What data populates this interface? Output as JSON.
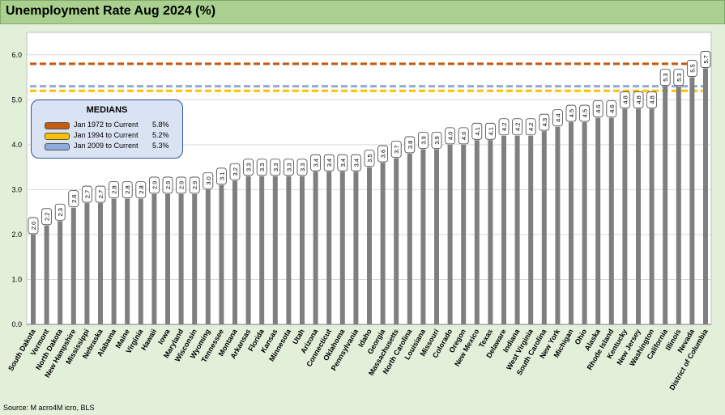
{
  "title": "Unemployment Rate Aug 2024 (%)",
  "source": "Source: M acro4M icro, BLS",
  "colors": {
    "bar": "#7f7f7f",
    "median_1972": "#c55a11",
    "median_1994": "#ffc000",
    "median_2009": "#8faadc"
  },
  "legend": {
    "title": "MEDIANS",
    "items": [
      {
        "label": "Jan 1972 to Current",
        "value": "5.8%",
        "color": "#c55a11"
      },
      {
        "label": "Jan 1994 to Current",
        "value": "5.2%",
        "color": "#ffc000"
      },
      {
        "label": "Jan 2009 to Current",
        "value": "5.3%",
        "color": "#8faadc"
      }
    ]
  },
  "chart_data": {
    "type": "bar",
    "title": "Unemployment Rate Aug 2024 (%)",
    "xlabel": "",
    "ylabel": "",
    "ylim": [
      0,
      6.5
    ],
    "yticks": [
      "0.0",
      "1.0",
      "2.0",
      "3.0",
      "4.0",
      "5.0",
      "6.0"
    ],
    "grid": true,
    "categories": [
      "South Dakota",
      "Vermont",
      "North Dakota",
      "New Hampshire",
      "Mississippi",
      "Nebraska",
      "Alabama",
      "Maine",
      "Virginia",
      "Hawaii",
      "Iowa",
      "Maryland",
      "Wisconsin",
      "Wyoming",
      "Tennessee",
      "Montana",
      "Arkansas",
      "Florida",
      "Kansas",
      "Minnesota",
      "Utah",
      "Arizona",
      "Connecticut",
      "Oklahoma",
      "Pennsylvania",
      "Idaho",
      "Georgia",
      "Massachusetts",
      "North Carolina",
      "Louisiana",
      "Missouri",
      "Colorado",
      "Oregon",
      "New Mexico",
      "Texas",
      "Delaware",
      "Indiana",
      "West Virginia",
      "South Carolina",
      "New York",
      "Michigan",
      "Ohio",
      "Alaska",
      "Rhode Island",
      "Kentucky",
      "New Jersey",
      "Washington",
      "California",
      "Illinois",
      "Nevada",
      "District of Columbia"
    ],
    "values": [
      2.0,
      2.2,
      2.3,
      2.6,
      2.7,
      2.7,
      2.8,
      2.8,
      2.8,
      2.9,
      2.9,
      2.9,
      2.9,
      3.0,
      3.1,
      3.2,
      3.3,
      3.3,
      3.3,
      3.3,
      3.3,
      3.4,
      3.4,
      3.4,
      3.4,
      3.5,
      3.6,
      3.7,
      3.8,
      3.9,
      3.9,
      4.0,
      4.0,
      4.1,
      4.1,
      4.2,
      4.2,
      4.2,
      4.3,
      4.4,
      4.5,
      4.5,
      4.6,
      4.6,
      4.8,
      4.8,
      4.8,
      5.3,
      5.3,
      5.5,
      5.7
    ],
    "data_labels": [
      "2.0",
      "2.2",
      "2.3",
      "2.6",
      "2.7",
      "2.7",
      "2.8",
      "2.8",
      "2.8",
      "2.9",
      "2.9",
      "2.9",
      "2.9",
      "3.0",
      "3.1",
      "3.2",
      "3.3",
      "3.3",
      "3.3",
      "3.3",
      "3.3",
      "3.4",
      "3.4",
      "3.4",
      "3.4",
      "3.5",
      "3.6",
      "3.7",
      "3.8",
      "3.9",
      "3.9",
      "4.0",
      "4.0",
      "4.1",
      "4.1",
      "4.2",
      "4.2",
      "4.2",
      "4.3",
      "4.4",
      "4.5",
      "4.5",
      "4.6",
      "4.6",
      "4.8",
      "4.8",
      "4.8",
      "5.3",
      "5.3",
      "5.5",
      "5.7"
    ],
    "reference_lines": [
      {
        "name": "Jan 1972 to Current",
        "value": 5.8,
        "color": "#c55a11",
        "style": "dashed"
      },
      {
        "name": "Jan 1994 to Current",
        "value": 5.2,
        "color": "#ffc000",
        "style": "dashed"
      },
      {
        "name": "Jan 2009 to Current",
        "value": 5.3,
        "color": "#8faadc",
        "style": "dashed"
      }
    ],
    "legend_position": "upper-left"
  }
}
